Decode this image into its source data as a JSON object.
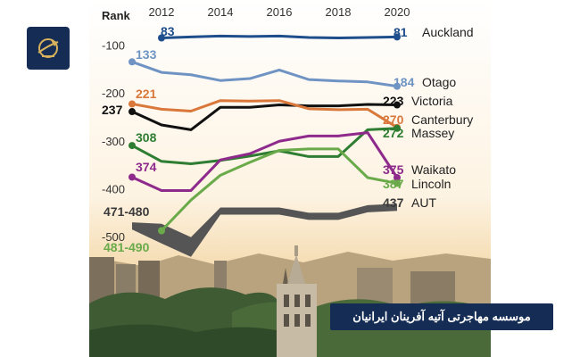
{
  "brand": {
    "banner_text": "موسسه مهاجرتی آتیه آفرینان ایرانیان",
    "logo_icon": "airplane-globe-logo",
    "banner_color": "#152d55"
  },
  "chart_data": {
    "type": "line",
    "title": "",
    "xlabel": "",
    "ylabel": "Rank",
    "x_ticks": [
      2012,
      2014,
      2016,
      2018,
      2020
    ],
    "y_ticks": [
      {
        "value": 100,
        "label": "-100"
      },
      {
        "value": 200,
        "label": "-200"
      },
      {
        "value": 300,
        "label": "-300"
      },
      {
        "value": 400,
        "label": "-400"
      },
      {
        "value": 500,
        "label": "-500"
      }
    ],
    "y_inverted": true,
    "x": [
      2011,
      2012,
      2013,
      2014,
      2015,
      2016,
      2017,
      2018,
      2019,
      2020
    ],
    "series": [
      {
        "name": "Auckland",
        "color": "#1f4e8c",
        "start_label": "83",
        "end_label": "81",
        "values": [
          null,
          83,
          81,
          79,
          80,
          79,
          82,
          83,
          82,
          81
        ]
      },
      {
        "name": "Otago",
        "color": "#6f94c4",
        "start_label": "133",
        "end_label": "184",
        "values": [
          133,
          155,
          160,
          172,
          168,
          150,
          170,
          173,
          175,
          184
        ]
      },
      {
        "name": "Victoria",
        "color": "#111111",
        "start_label": "237",
        "end_label": "223",
        "values": [
          237,
          265,
          275,
          228,
          228,
          223,
          225,
          225,
          222,
          223
        ]
      },
      {
        "name": "Canterbury",
        "color": "#d9783a",
        "start_label": "221",
        "end_label": "270",
        "values": [
          221,
          232,
          236,
          214,
          215,
          214,
          231,
          233,
          232,
          270
        ]
      },
      {
        "name": "Massey",
        "color": "#2e7d32",
        "start_label": "308",
        "end_label": "272",
        "values": [
          308,
          341,
          346,
          339,
          330,
          319,
          331,
          331,
          275,
          272
        ]
      },
      {
        "name": "Waikato",
        "color": "#8e2a8c",
        "start_label": "374",
        "end_label": "375",
        "values": [
          374,
          402,
          402,
          338,
          325,
          299,
          288,
          288,
          281,
          375
        ]
      },
      {
        "name": "Lincoln",
        "color": "#6aaa4a",
        "start_label": "481-490",
        "end_label": "387",
        "values": [
          null,
          486,
          422,
          370,
          343,
          318,
          315,
          315,
          375,
          387
        ]
      },
      {
        "name": "AUT",
        "color": "#555555",
        "start_label": "471-480",
        "end_label": "437",
        "values": [
          476,
          492,
          520,
          445,
          445,
          445,
          456,
          456,
          440,
          437
        ]
      }
    ]
  }
}
